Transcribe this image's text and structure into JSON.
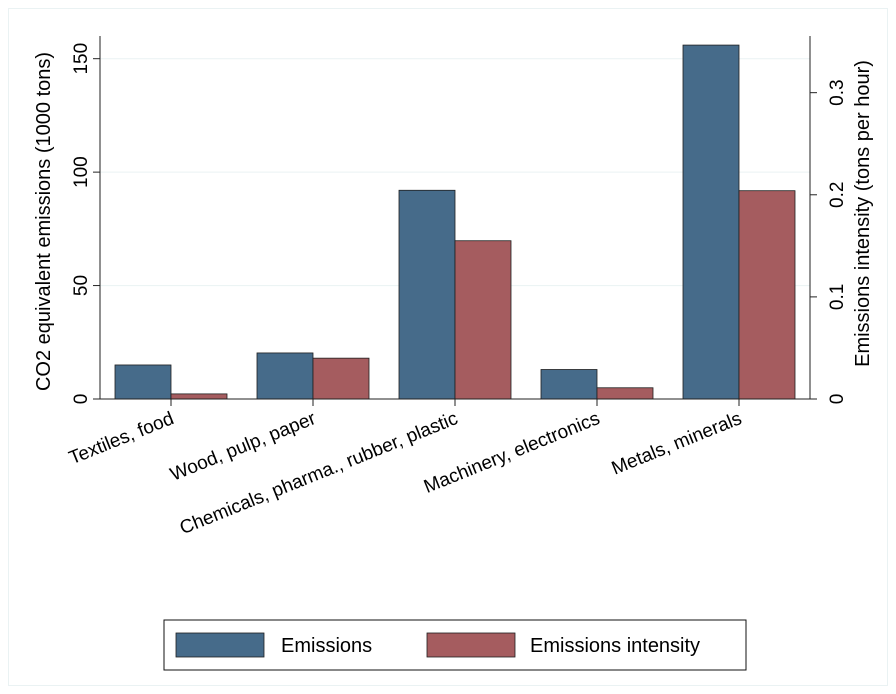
{
  "chart_data": {
    "type": "bar",
    "categories": [
      "Textiles, food",
      "Wood, pulp, paper",
      "Chemicals, pharma., rubber, plastic",
      "Machinery, electronics",
      "Metals, minerals"
    ],
    "series": [
      {
        "name": "Emissions",
        "axis": "left",
        "values": [
          15,
          20.3,
          92,
          13,
          156
        ],
        "color": "#466b8a"
      },
      {
        "name": "Emissions intensity",
        "axis": "right",
        "values": [
          0.005,
          0.04,
          0.155,
          0.011,
          0.204
        ],
        "color": "#a55c5f"
      }
    ],
    "ylabel": "CO2 equivalent emissions (1000 tons)",
    "y2label": "Emissions intensity (tons per hour)",
    "ylim": [
      0,
      160
    ],
    "yticks": [
      0,
      50,
      100,
      150
    ],
    "y2lim": [
      0,
      0.3555
    ],
    "y2ticks": [
      0,
      0.1,
      0.2,
      0.3
    ],
    "y2ticklabels": [
      "0",
      "0.1",
      "0.2",
      "0.3"
    ],
    "grid": true,
    "legend": "bottom",
    "colors": {
      "frame": "#eaf2f3",
      "grid": "#eaf2f3",
      "border": "#222222"
    }
  }
}
